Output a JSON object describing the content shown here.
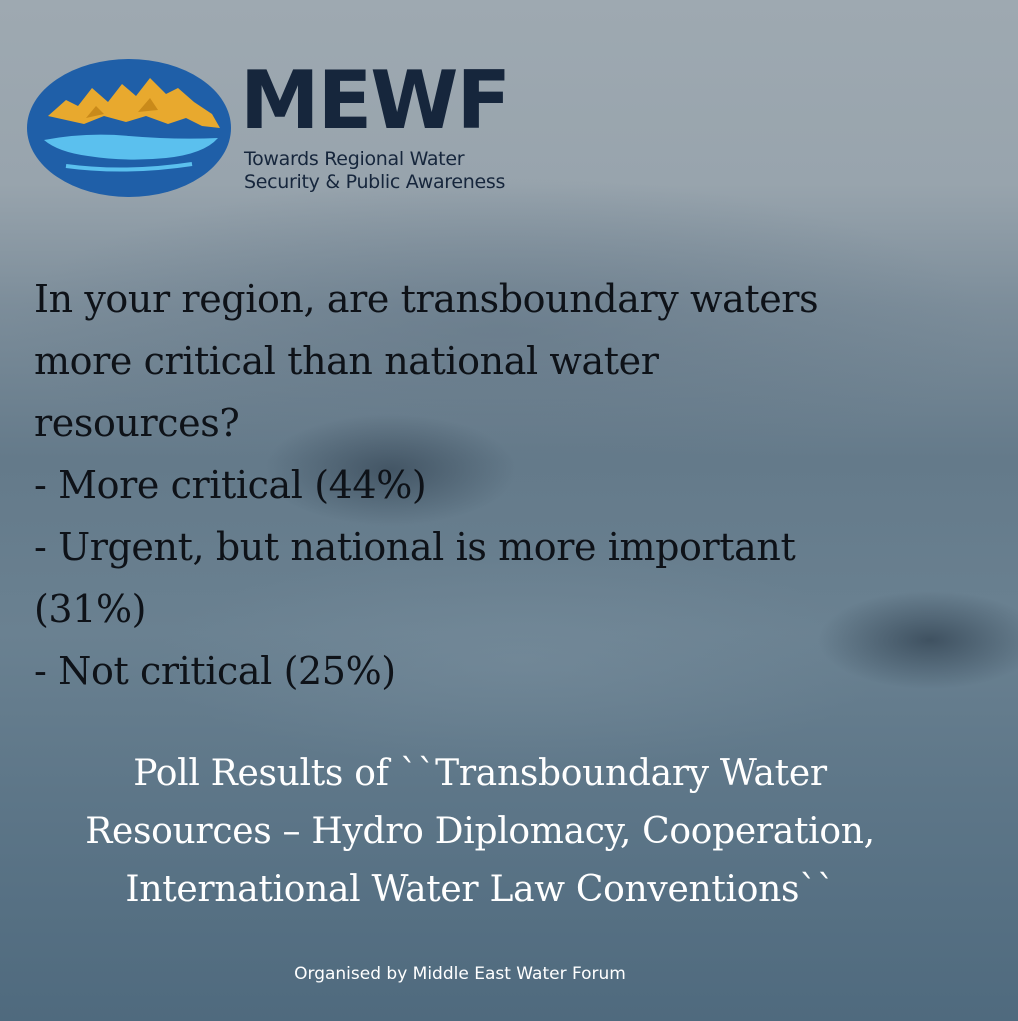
{
  "logo": {
    "brand": "MEWF",
    "tagline_line1": "Towards Regional Water",
    "tagline_line2": "Security & Public Awareness",
    "colors": {
      "oval": "#1f5fa8",
      "mountains": "#e8a92e",
      "water": "#5bc0ee",
      "text": "#16263c"
    }
  },
  "question": {
    "line1": "In your region, are transboundary waters",
    "line2": "more critical than national water",
    "line3": "resources?"
  },
  "options": [
    {
      "text": "- More critical (44%)"
    },
    {
      "text": "- Urgent, but national is more important"
    },
    {
      "text": "(31%)"
    },
    {
      "text": "- Not critical (25%)"
    }
  ],
  "caption": {
    "line1": "Poll Results of ``Transboundary Water",
    "line2": "Resources – Hydro Diplomacy, Cooperation,",
    "line3": "International Water Law Conventions``"
  },
  "credit": "Organised by Middle East Water Forum"
}
